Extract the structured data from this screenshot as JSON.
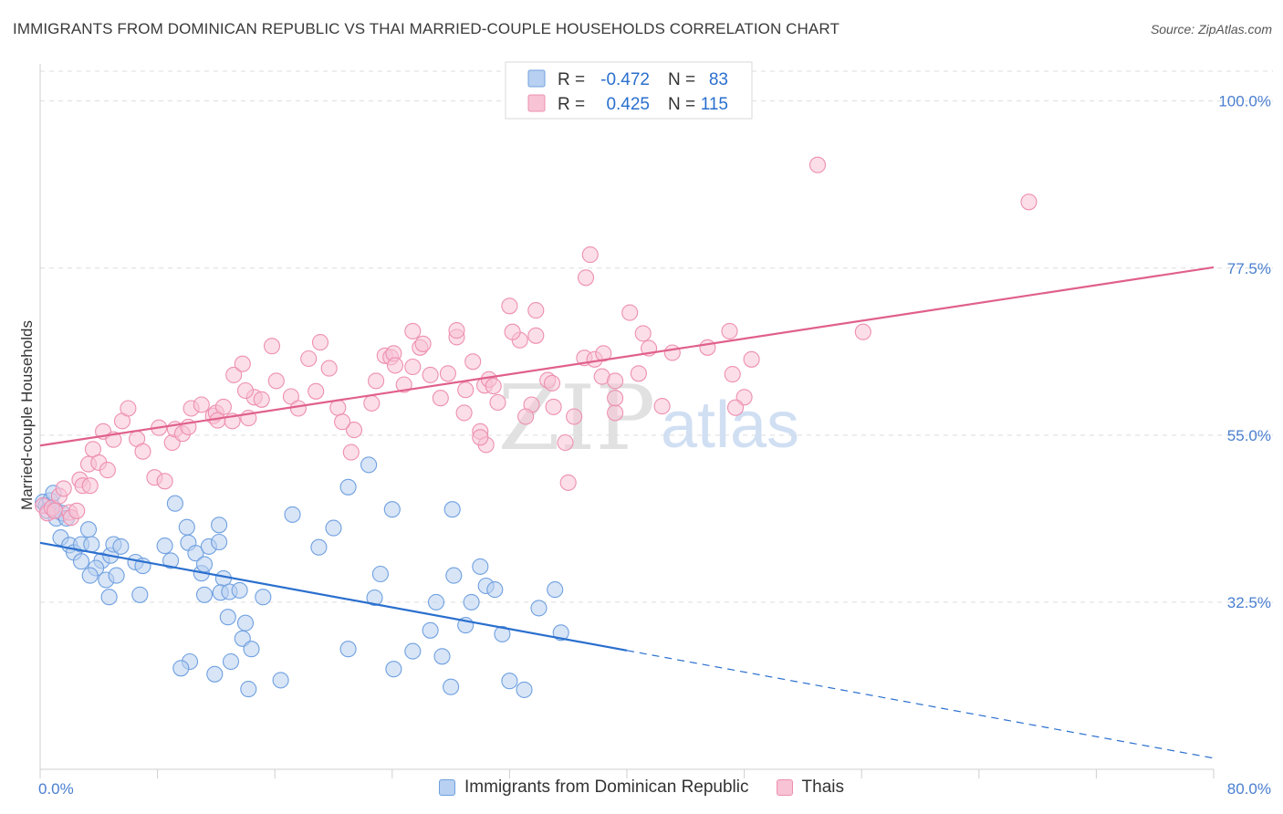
{
  "title": "IMMIGRANTS FROM DOMINICAN REPUBLIC VS THAI MARRIED-COUPLE HOUSEHOLDS CORRELATION CHART",
  "source": "Source: ZipAtlas.com",
  "watermark": {
    "zip": "ZIP",
    "atlas": "atlas"
  },
  "chart_data": {
    "type": "scatter",
    "title": "IMMIGRANTS FROM DOMINICAN REPUBLIC VS THAI MARRIED-COUPLE HOUSEHOLDS CORRELATION CHART",
    "xlabel": "",
    "ylabel": "Married-couple Households",
    "xlim": [
      0,
      80
    ],
    "ylim": [
      10,
      105
    ],
    "x_tick_labels": [
      "0.0%",
      "80.0%"
    ],
    "y_ticks": [
      32.5,
      55.0,
      77.5,
      100.0
    ],
    "y_tick_labels": [
      "32.5%",
      "55.0%",
      "77.5%",
      "100.0%"
    ],
    "grid": true,
    "legend_position": "top-center",
    "series": [
      {
        "name": "Immigrants from Dominican Republic",
        "color": "#6fa0e0",
        "fill": "#b8d0f1",
        "line_color": "#2a6fce",
        "R": "-0.472",
        "N": "83",
        "trend": {
          "x0": 0,
          "y0": 40.5,
          "x1": 40,
          "y1": 26.0,
          "dash_x1": 80,
          "dash_y1": 11.5
        },
        "points": [
          [
            0.2,
            46
          ],
          [
            0.4,
            45.5
          ],
          [
            0.5,
            44.8
          ],
          [
            0.7,
            46.2
          ],
          [
            0.9,
            47.2
          ],
          [
            1.0,
            45
          ],
          [
            1.1,
            43.8
          ],
          [
            1.5,
            44.5
          ],
          [
            1.8,
            43.8
          ],
          [
            1.4,
            41.2
          ],
          [
            2.0,
            40.2
          ],
          [
            2.3,
            39.2
          ],
          [
            2.8,
            40.3
          ],
          [
            3.3,
            42.3
          ],
          [
            3.5,
            40.3
          ],
          [
            2.8,
            38.0
          ],
          [
            4.2,
            38.1
          ],
          [
            4.8,
            38.8
          ],
          [
            3.8,
            37.1
          ],
          [
            4.5,
            35.5
          ],
          [
            5.2,
            36.1
          ],
          [
            4.7,
            33.2
          ],
          [
            6.8,
            33.5
          ],
          [
            3.4,
            36.1
          ],
          [
            5.0,
            40.3
          ],
          [
            5.5,
            40.0
          ],
          [
            6.5,
            37.9
          ],
          [
            7.0,
            37.4
          ],
          [
            8.5,
            40.1
          ],
          [
            8.9,
            38.1
          ],
          [
            9.2,
            45.8
          ],
          [
            10.0,
            42.6
          ],
          [
            10.1,
            40.5
          ],
          [
            10.6,
            39.1
          ],
          [
            11.0,
            36.4
          ],
          [
            11.5,
            40.0
          ],
          [
            11.2,
            37.6
          ],
          [
            12.2,
            42.9
          ],
          [
            12.2,
            40.6
          ],
          [
            12.5,
            35.7
          ],
          [
            11.2,
            33.5
          ],
          [
            12.3,
            33.8
          ],
          [
            12.9,
            33.9
          ],
          [
            13.6,
            34.1
          ],
          [
            12.8,
            30.5
          ],
          [
            14.0,
            29.7
          ],
          [
            15.2,
            33.2
          ],
          [
            13.8,
            27.6
          ],
          [
            14.4,
            26.2
          ],
          [
            13.0,
            24.5
          ],
          [
            10.2,
            24.5
          ],
          [
            9.6,
            23.6
          ],
          [
            11.9,
            22.8
          ],
          [
            16.4,
            22.0
          ],
          [
            14.2,
            20.8
          ],
          [
            17.2,
            44.3
          ],
          [
            19.0,
            39.9
          ],
          [
            20.0,
            42.5
          ],
          [
            21.0,
            48.0
          ],
          [
            22.4,
            51.0
          ],
          [
            24.0,
            45.0
          ],
          [
            23.2,
            36.3
          ],
          [
            22.8,
            33.1
          ],
          [
            21.0,
            26.2
          ],
          [
            24.1,
            23.5
          ],
          [
            25.4,
            25.9
          ],
          [
            28.1,
            45.0
          ],
          [
            28.2,
            36.1
          ],
          [
            27.0,
            32.5
          ],
          [
            26.6,
            28.7
          ],
          [
            27.4,
            25.2
          ],
          [
            28.0,
            21.1
          ],
          [
            29.4,
            32.5
          ],
          [
            29.0,
            29.4
          ],
          [
            30.0,
            37.3
          ],
          [
            30.4,
            34.7
          ],
          [
            31.0,
            34.2
          ],
          [
            31.5,
            28.2
          ],
          [
            32.0,
            21.9
          ],
          [
            33.0,
            20.7
          ],
          [
            34.0,
            31.7
          ],
          [
            35.1,
            34.2
          ],
          [
            35.5,
            28.4
          ]
        ]
      },
      {
        "name": "Thais",
        "color": "#ee8fb0",
        "fill": "#f7c3d5",
        "line_color": "#e0608b",
        "R": "0.425",
        "N": "115",
        "trend": {
          "x0": 0,
          "y0": 53.6,
          "x1": 80,
          "y1": 77.6
        },
        "points": [
          [
            0.2,
            45.5
          ],
          [
            0.5,
            44.5
          ],
          [
            0.8,
            45.2
          ],
          [
            1.0,
            44.8
          ],
          [
            1.3,
            46.8
          ],
          [
            1.6,
            47.8
          ],
          [
            2.0,
            44.6
          ],
          [
            2.1,
            43.9
          ],
          [
            2.5,
            44.8
          ],
          [
            2.7,
            49.0
          ],
          [
            2.9,
            48.2
          ],
          [
            3.3,
            51.1
          ],
          [
            3.4,
            48.2
          ],
          [
            3.6,
            53.1
          ],
          [
            4.0,
            51.3
          ],
          [
            4.6,
            50.3
          ],
          [
            4.3,
            55.5
          ],
          [
            5.0,
            54.4
          ],
          [
            5.6,
            56.9
          ],
          [
            6.0,
            58.6
          ],
          [
            6.6,
            54.5
          ],
          [
            7.0,
            52.8
          ],
          [
            7.8,
            49.3
          ],
          [
            8.5,
            48.8
          ],
          [
            8.1,
            56.0
          ],
          [
            9.0,
            54.0
          ],
          [
            9.2,
            55.8
          ],
          [
            9.7,
            55.2
          ],
          [
            10.1,
            56.1
          ],
          [
            10.3,
            58.6
          ],
          [
            11.0,
            59.1
          ],
          [
            11.8,
            57.6
          ],
          [
            12.0,
            58.0
          ],
          [
            12.5,
            58.8
          ],
          [
            12.1,
            57.0
          ],
          [
            13.1,
            56.9
          ],
          [
            14.2,
            57.3
          ],
          [
            14.6,
            60.1
          ],
          [
            14.0,
            61.0
          ],
          [
            13.2,
            63.1
          ],
          [
            13.8,
            64.6
          ],
          [
            15.1,
            59.8
          ],
          [
            15.8,
            67.0
          ],
          [
            16.1,
            62.3
          ],
          [
            17.1,
            60.2
          ],
          [
            17.6,
            58.6
          ],
          [
            18.3,
            65.3
          ],
          [
            18.8,
            60.9
          ],
          [
            19.1,
            67.5
          ],
          [
            19.7,
            64.0
          ],
          [
            20.3,
            58.7
          ],
          [
            21.4,
            55.7
          ],
          [
            21.2,
            52.7
          ],
          [
            20.6,
            56.8
          ],
          [
            22.6,
            59.3
          ],
          [
            22.9,
            62.3
          ],
          [
            23.5,
            65.7
          ],
          [
            23.9,
            65.5
          ],
          [
            24.1,
            66.0
          ],
          [
            24.2,
            64.4
          ],
          [
            24.8,
            61.8
          ],
          [
            25.4,
            64.2
          ],
          [
            25.9,
            66.8
          ],
          [
            25.4,
            69.0
          ],
          [
            26.1,
            67.3
          ],
          [
            26.6,
            63.1
          ],
          [
            27.3,
            60.0
          ],
          [
            27.8,
            63.3
          ],
          [
            28.4,
            68.2
          ],
          [
            28.4,
            69.1
          ],
          [
            29.5,
            64.9
          ],
          [
            28.9,
            58.0
          ],
          [
            29.0,
            61.1
          ],
          [
            30.0,
            55.5
          ],
          [
            30.4,
            53.7
          ],
          [
            30.0,
            54.7
          ],
          [
            30.3,
            61.7
          ],
          [
            30.6,
            62.5
          ],
          [
            30.9,
            61.6
          ],
          [
            31.2,
            59.4
          ],
          [
            32.0,
            72.4
          ],
          [
            32.7,
            67.8
          ],
          [
            32.2,
            68.9
          ],
          [
            33.5,
            59.1
          ],
          [
            33.8,
            68.4
          ],
          [
            34.6,
            62.4
          ],
          [
            34.9,
            62.0
          ],
          [
            35.0,
            58.8
          ],
          [
            36.4,
            57.5
          ],
          [
            37.1,
            65.4
          ],
          [
            37.8,
            65.2
          ],
          [
            38.3,
            62.9
          ],
          [
            39.2,
            58.0
          ],
          [
            39.2,
            62.3
          ],
          [
            37.2,
            76.2
          ],
          [
            37.5,
            79.3
          ],
          [
            40.2,
            71.5
          ],
          [
            38.4,
            66.0
          ],
          [
            35.8,
            54.0
          ],
          [
            33.1,
            57.5
          ],
          [
            33.8,
            71.8
          ],
          [
            36.0,
            48.6
          ],
          [
            39.2,
            60.0
          ],
          [
            40.8,
            63.3
          ],
          [
            42.4,
            58.9
          ],
          [
            41.1,
            68.7
          ],
          [
            41.5,
            66.7
          ],
          [
            43.1,
            66.1
          ],
          [
            45.5,
            66.8
          ],
          [
            47.0,
            69.0
          ],
          [
            47.2,
            63.2
          ],
          [
            48.5,
            65.2
          ],
          [
            48.0,
            60.1
          ],
          [
            47.4,
            58.7
          ],
          [
            53.0,
            91.4
          ],
          [
            56.1,
            68.9
          ],
          [
            67.4,
            86.4
          ]
        ]
      }
    ]
  }
}
